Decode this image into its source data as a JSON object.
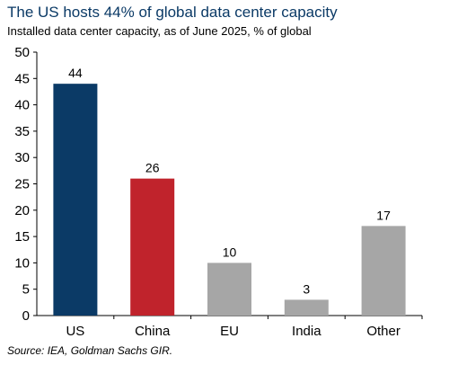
{
  "header": {
    "title": "The US hosts 44% of global data center capacity",
    "subtitle": "Installed data center capacity, as of June 2025, % of global"
  },
  "footer": {
    "source": "Source: IEA, Goldman Sachs GIR."
  },
  "colors": {
    "title": "#0b3a66",
    "us_bar": "#0b3a66",
    "china_bar": "#c0232c",
    "other_bars": "#a6a6a6"
  },
  "chart_data": {
    "type": "bar",
    "categories": [
      "US",
      "China",
      "EU",
      "India",
      "Other"
    ],
    "values": [
      44,
      26,
      10,
      3,
      17
    ],
    "data_labels": [
      "44",
      "26",
      "10",
      "3",
      "17"
    ],
    "bar_colors": [
      "#0b3a66",
      "#c0232c",
      "#a6a6a6",
      "#a6a6a6",
      "#a6a6a6"
    ],
    "ylim": [
      0,
      50
    ],
    "yticks": [
      0,
      5,
      10,
      15,
      20,
      25,
      30,
      35,
      40,
      45,
      50
    ],
    "grid": false,
    "legend": "none"
  }
}
